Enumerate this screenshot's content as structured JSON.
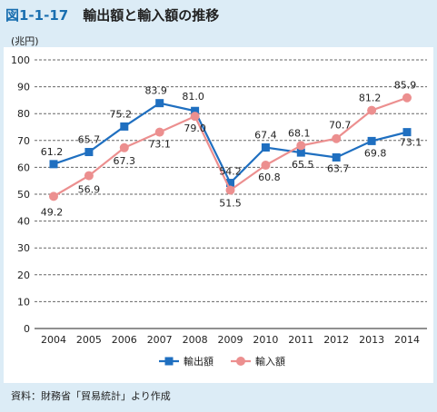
{
  "figure": {
    "number": "図1-1-17",
    "title": "輸出額と輸入額の推移",
    "unit": "(兆円)",
    "source": "資料：財務省「貿易統計」より作成"
  },
  "chart_data": {
    "type": "line",
    "x": [
      "2004",
      "2005",
      "2006",
      "2007",
      "2008",
      "2009",
      "2010",
      "2011",
      "2012",
      "2013",
      "2014"
    ],
    "ylim": [
      0,
      100
    ],
    "yticks": [
      0,
      10,
      20,
      30,
      40,
      50,
      60,
      70,
      80,
      90,
      100
    ],
    "grid": true,
    "legend_position": "bottom-center",
    "series": [
      {
        "name": "輸出額",
        "color": "#1f6fc0",
        "marker": "square",
        "values": [
          61.2,
          65.7,
          75.2,
          83.9,
          81.0,
          54.2,
          67.4,
          65.5,
          63.7,
          69.8,
          73.1
        ],
        "labels": [
          "61.2",
          "65.7",
          "75.2",
          "83.9",
          "81.0",
          "54.2",
          "67.4",
          "65.5",
          "63.7",
          "69.8",
          "73.1"
        ]
      },
      {
        "name": "輸入額",
        "color": "#ec8f8f",
        "marker": "circle",
        "values": [
          49.2,
          56.9,
          67.3,
          73.1,
          79.0,
          51.5,
          60.8,
          68.1,
          70.7,
          81.2,
          85.9
        ],
        "labels": [
          "49.2",
          "56.9",
          "67.3",
          "73.1",
          "79.0",
          "51.5",
          "60.8",
          "68.1",
          "70.7",
          "81.2",
          "85.9"
        ]
      }
    ]
  }
}
